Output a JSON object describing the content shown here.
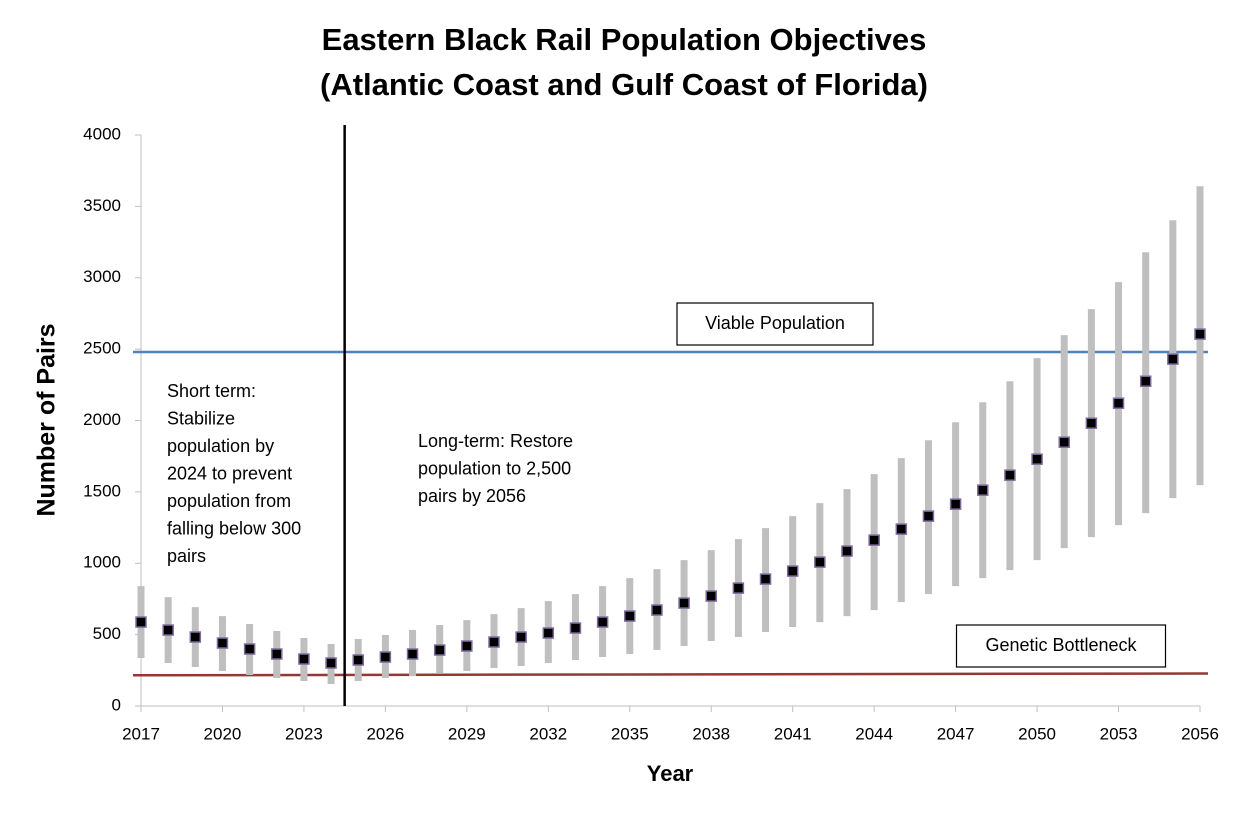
{
  "chart_data": {
    "type": "scatter",
    "title": [
      "Eastern Black Rail Population Objectives",
      "(Atlantic Coast and Gulf Coast of Florida)"
    ],
    "x_label": "Year",
    "y_label": "Number of Pairs",
    "x": [
      2017,
      2018,
      2019,
      2020,
      2021,
      2022,
      2023,
      2024,
      2025,
      2026,
      2027,
      2028,
      2029,
      2030,
      2031,
      2032,
      2033,
      2034,
      2035,
      2036,
      2037,
      2038,
      2039,
      2040,
      2041,
      2042,
      2043,
      2044,
      2045,
      2046,
      2047,
      2048,
      2049,
      2050,
      2051,
      2052,
      2053,
      2054,
      2055,
      2056
    ],
    "series": [
      {
        "color": "#000000",
        "error_color": "#bfbfbf",
        "values": [
          588,
          532,
          483,
          441,
          399,
          364,
          329,
          301,
          322,
          343,
          364,
          392,
          420,
          448,
          483,
          511,
          546,
          588,
          630,
          672,
          721,
          770,
          826,
          889,
          945,
          1008,
          1085,
          1162,
          1239,
          1330,
          1414,
          1512,
          1617,
          1729,
          1848,
          1981,
          2121,
          2275,
          2430,
          2605
        ],
        "lower": [
          336,
          301,
          273,
          245,
          217,
          196,
          175,
          154,
          175,
          196,
          210,
          231,
          245,
          266,
          280,
          301,
          322,
          343,
          364,
          392,
          420,
          455,
          483,
          518,
          553,
          588,
          630,
          672,
          728,
          784,
          840,
          896,
          952,
          1022,
          1106,
          1183,
          1267,
          1351,
          1456,
          1547
        ],
        "upper": [
          840,
          763,
          693,
          630,
          574,
          525,
          476,
          434,
          469,
          497,
          532,
          567,
          602,
          644,
          686,
          735,
          784,
          840,
          896,
          959,
          1022,
          1092,
          1169,
          1246,
          1330,
          1421,
          1519,
          1624,
          1736,
          1862,
          1988,
          2128,
          2275,
          2437,
          2598,
          2780,
          2969,
          3179,
          3403,
          3641
        ]
      }
    ],
    "reference_lines": [
      {
        "label": "Viable Population",
        "color": "#4f81bd",
        "x": [
          2017,
          2056
        ],
        "values": [
          2480,
          2480
        ]
      },
      {
        "label": "Genetic Bottleneck",
        "color": "#953735",
        "x": [
          2017,
          2056
        ],
        "values": [
          215,
          228
        ]
      }
    ],
    "vline": {
      "x": 2024.5,
      "color": "#000000"
    },
    "annotations": [
      {
        "lines": [
          "Short term:",
          "Stabilize",
          "population by",
          "2024 to prevent",
          "population from",
          "falling below 300",
          "pairs"
        ]
      },
      {
        "lines": [
          "Long-term: Restore",
          "population to 2,500",
          "pairs by 2056"
        ]
      }
    ],
    "xlim": [
      2017,
      2056
    ],
    "xticks": [
      2017,
      2020,
      2023,
      2026,
      2029,
      2032,
      2035,
      2038,
      2041,
      2044,
      2047,
      2050,
      2053,
      2056
    ],
    "ylim": [
      0,
      4000
    ],
    "yticks": [
      0,
      500,
      1000,
      1500,
      2000,
      2500,
      3000,
      3500,
      4000
    ]
  }
}
